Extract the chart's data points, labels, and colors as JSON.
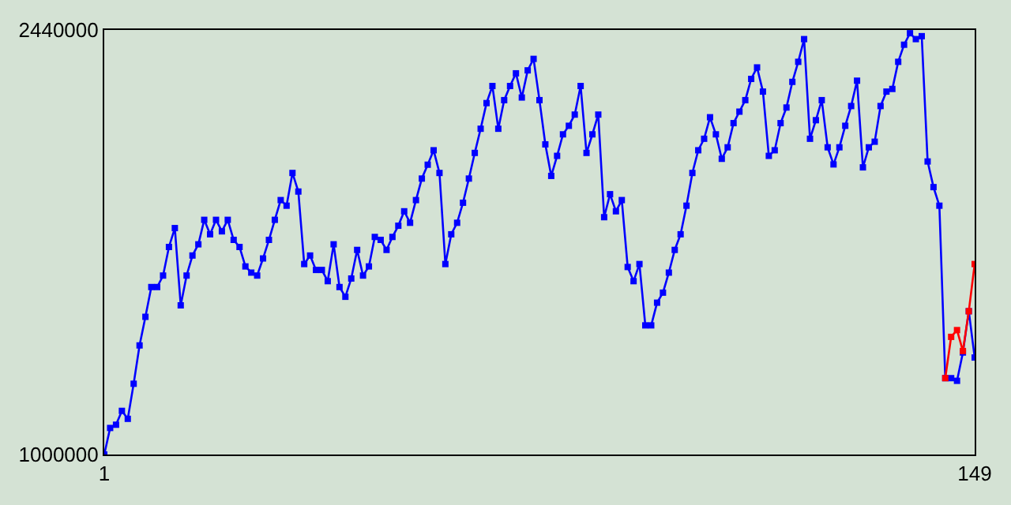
{
  "chart_data": {
    "type": "line",
    "marker": "square",
    "xlim": [
      1,
      149
    ],
    "xticks": [
      1,
      149
    ],
    "ylim": [
      1000000,
      2440000
    ],
    "yticks": [
      1000000,
      2440000
    ],
    "x": [
      1,
      2,
      3,
      4,
      5,
      6,
      7,
      8,
      9,
      10,
      11,
      12,
      13,
      14,
      15,
      16,
      17,
      18,
      19,
      20,
      21,
      22,
      23,
      24,
      25,
      26,
      27,
      28,
      29,
      30,
      31,
      32,
      33,
      34,
      35,
      36,
      37,
      38,
      39,
      40,
      41,
      42,
      43,
      44,
      45,
      46,
      47,
      48,
      49,
      50,
      51,
      52,
      53,
      54,
      55,
      56,
      57,
      58,
      59,
      60,
      61,
      62,
      63,
      64,
      65,
      66,
      67,
      68,
      69,
      70,
      71,
      72,
      73,
      74,
      75,
      76,
      77,
      78,
      79,
      80,
      81,
      82,
      83,
      84,
      85,
      86,
      87,
      88,
      89,
      90,
      91,
      92,
      93,
      94,
      95,
      96,
      97,
      98,
      99,
      100,
      101,
      102,
      103,
      104,
      105,
      106,
      107,
      108,
      109,
      110,
      111,
      112,
      113,
      114,
      115,
      116,
      117,
      118,
      119,
      120,
      121,
      122,
      123,
      124,
      125,
      126,
      127,
      128,
      129,
      130,
      131,
      132,
      133,
      134,
      135,
      136,
      137,
      138,
      139,
      140,
      141,
      142,
      143,
      144,
      145,
      146,
      147,
      148,
      149
    ],
    "series": [
      {
        "color": "#0000ff",
        "values": [
          1000000,
          1090000,
          1101000,
          1148000,
          1121000,
          1240000,
          1370000,
          1467000,
          1568000,
          1568000,
          1607000,
          1704000,
          1768000,
          1506000,
          1607000,
          1675000,
          1713000,
          1796000,
          1747000,
          1796000,
          1757000,
          1796000,
          1728000,
          1704000,
          1638000,
          1617000,
          1607000,
          1665000,
          1728000,
          1796000,
          1863000,
          1844000,
          1955000,
          1892000,
          1646000,
          1675000,
          1626000,
          1626000,
          1588000,
          1713000,
          1568000,
          1535000,
          1597000,
          1694000,
          1607000,
          1638000,
          1738000,
          1728000,
          1694000,
          1738000,
          1776000,
          1825000,
          1786000,
          1863000,
          1936000,
          1983000,
          2032000,
          1955000,
          1646000,
          1747000,
          1786000,
          1854000,
          1936000,
          2023000,
          2105000,
          2192000,
          2250000,
          2105000,
          2202000,
          2250000,
          2293000,
          2211000,
          2303000,
          2342000,
          2202000,
          2052000,
          1945000,
          2013000,
          2086000,
          2115000,
          2153000,
          2250000,
          2023000,
          2086000,
          2153000,
          1805000,
          1883000,
          1825000,
          1863000,
          1636000,
          1588000,
          1646000,
          1438000,
          1438000,
          1515000,
          1549000,
          1617000,
          1694000,
          1747000,
          1844000,
          1955000,
          2032000,
          2071000,
          2144000,
          2086000,
          2003000,
          2042000,
          2124000,
          2163000,
          2202000,
          2274000,
          2313000,
          2231000,
          2013000,
          2032000,
          2124000,
          2177000,
          2264000,
          2332000,
          2409000,
          2071000,
          2134000,
          2202000,
          2042000,
          1984000,
          2042000,
          2115000,
          2182000,
          2268000,
          1974000,
          2042000,
          2061000,
          2182000,
          2231000,
          2240000,
          2332000,
          2390000,
          2429000,
          2409000,
          2419000,
          1994000,
          1907000,
          1844000,
          1259000,
          1259000,
          1250000,
          1346000,
          1486000,
          1329000
        ]
      },
      {
        "color": "#ff0000",
        "values": [
          null,
          null,
          null,
          null,
          null,
          null,
          null,
          null,
          null,
          null,
          null,
          null,
          null,
          null,
          null,
          null,
          null,
          null,
          null,
          null,
          null,
          null,
          null,
          null,
          null,
          null,
          null,
          null,
          null,
          null,
          null,
          null,
          null,
          null,
          null,
          null,
          null,
          null,
          null,
          null,
          null,
          null,
          null,
          null,
          null,
          null,
          null,
          null,
          null,
          null,
          null,
          null,
          null,
          null,
          null,
          null,
          null,
          null,
          null,
          null,
          null,
          null,
          null,
          null,
          null,
          null,
          null,
          null,
          null,
          null,
          null,
          null,
          null,
          null,
          null,
          null,
          null,
          null,
          null,
          null,
          null,
          null,
          null,
          null,
          null,
          null,
          null,
          null,
          null,
          null,
          null,
          null,
          null,
          null,
          null,
          null,
          null,
          null,
          null,
          null,
          null,
          null,
          null,
          null,
          null,
          null,
          null,
          null,
          null,
          null,
          null,
          null,
          null,
          null,
          null,
          null,
          null,
          null,
          null,
          null,
          null,
          null,
          null,
          null,
          null,
          null,
          null,
          null,
          null,
          null,
          null,
          null,
          null,
          null,
          null,
          null,
          null,
          null,
          null,
          null,
          null,
          null,
          null,
          1259000,
          1399000,
          1422000,
          1351000,
          1486000,
          1646000
        ]
      }
    ]
  }
}
